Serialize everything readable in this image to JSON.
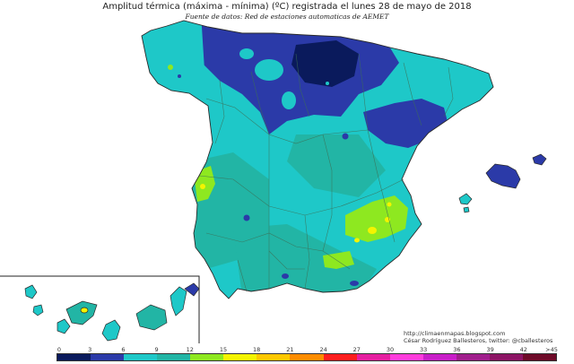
{
  "header": {
    "title": "Amplitud térmica (máxima - mínima) (ºC) registrada el lunes 28 de mayo de 2018",
    "subtitle": "Fuente de datos: Red de estaciones automaticas de AEMET"
  },
  "credits": {
    "url": "http://climaenmapas.blogspot.com",
    "author": "César Rodríguez Ballesteros, twitter: @cballesteros"
  },
  "legend": {
    "ticks": [
      "0",
      "3",
      "6",
      "9",
      "12",
      "15",
      "18",
      "21",
      "24",
      "27",
      "30",
      "33",
      "36",
      "39",
      "42",
      ">45"
    ],
    "colors": [
      "#0a1a5c",
      "#2b3aa8",
      "#1ec8c8",
      "#22b5a5",
      "#8ee820",
      "#f4f400",
      "#ffc800",
      "#ff8c00",
      "#ff1e1e",
      "#e61ea0",
      "#ff3cdc",
      "#c81ec8",
      "#a01e8c",
      "#8c1464",
      "#6e0a28"
    ]
  },
  "map_colors": {
    "background": "#ffffff",
    "sea_border": "#2a2a2a",
    "province_lines": "#3c6e55"
  }
}
